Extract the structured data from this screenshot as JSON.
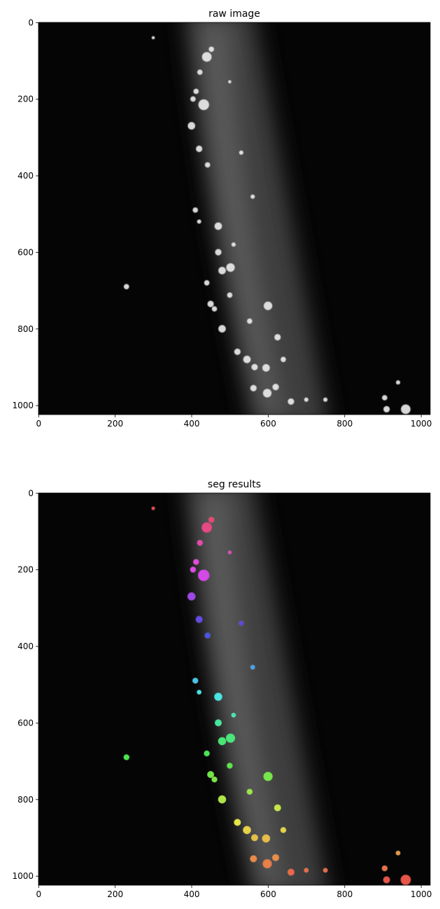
{
  "chart_data": [
    {
      "type": "image",
      "title": "raw image",
      "xlim": [
        -0.5,
        1023.5
      ],
      "ylim": [
        1023.5,
        -0.5
      ],
      "xticks": [
        0,
        200,
        400,
        600,
        800,
        1000
      ],
      "yticks": [
        0,
        200,
        400,
        600,
        800,
        1000
      ]
    },
    {
      "type": "image",
      "title": "seg results",
      "xlim": [
        -0.5,
        1023.5
      ],
      "ylim": [
        1023.5,
        -0.5
      ],
      "xticks": [
        0,
        200,
        400,
        600,
        800,
        1000
      ],
      "yticks": [
        0,
        200,
        400,
        600,
        800,
        1000
      ]
    }
  ]
}
